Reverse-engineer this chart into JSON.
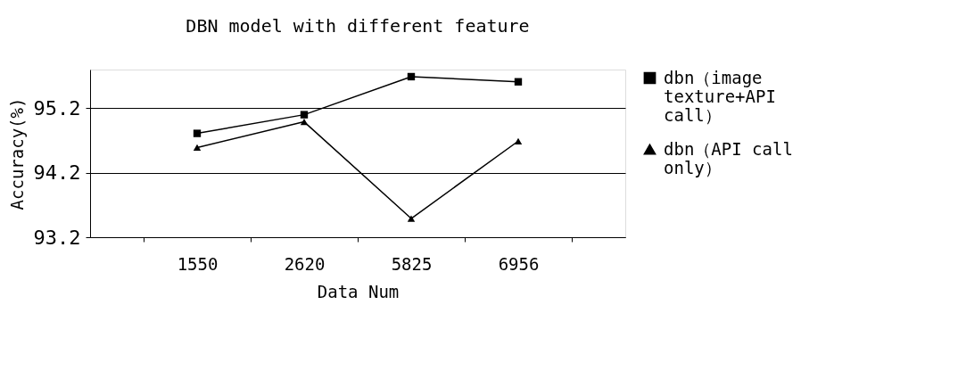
{
  "chart_data": {
    "type": "line",
    "title": "DBN model with different feature",
    "xlabel": "Data Num",
    "ylabel": "Accuracy(%)",
    "categories": [
      "1550",
      "2620",
      "5825",
      "6956"
    ],
    "series": [
      {
        "name": "dbn（image texture+API call）",
        "color": "#000000",
        "marker": "square",
        "values": [
          94.81,
          95.1,
          95.69,
          95.61
        ]
      },
      {
        "name": "dbn（API call only）",
        "color": "#000000",
        "marker": "triangle",
        "values": [
          94.59,
          94.99,
          93.49,
          94.69
        ]
      }
    ],
    "ylim": [
      93.2,
      95.8
    ],
    "yticks": [
      93.2,
      94.2,
      95.2
    ],
    "grid": "y",
    "legend": "right",
    "line_style": "solid"
  }
}
